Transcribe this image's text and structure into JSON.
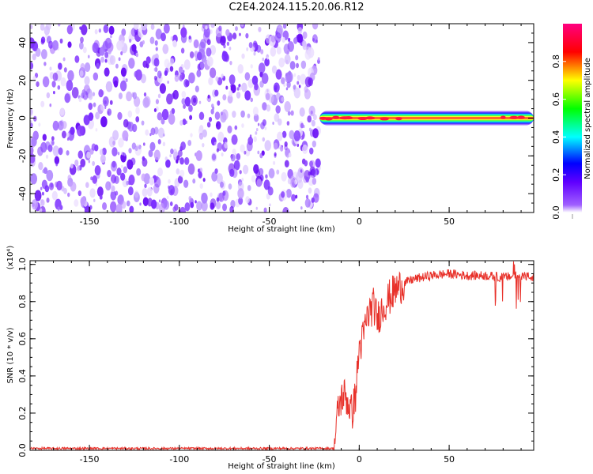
{
  "title": "C2E4.2024.115.20.06.R12",
  "chart_data": [
    {
      "type": "heatmap",
      "xlabel": "Height of straight line (km)",
      "ylabel": "Frequency (Hz)",
      "xlim": [
        -183,
        97
      ],
      "ylim": [
        -50,
        50
      ],
      "xticks": [
        -150,
        -100,
        -50,
        0,
        50
      ],
      "yticks": [
        -40,
        -20,
        0,
        20,
        40
      ],
      "noise_region": {
        "x": [
          -183,
          -22
        ],
        "y": [
          -50,
          50
        ]
      },
      "signal_band": {
        "x": [
          -22,
          97
        ],
        "frequency": 0,
        "halfwidth": 2.5
      },
      "colorbar": {
        "label": "Normalized spectral amplitude",
        "range": [
          0.0,
          1.0
        ],
        "ticks": [
          "0.0",
          "0.2",
          "0.4",
          "0.6",
          "0.8"
        ],
        "colors": [
          "#ffffff",
          "#8000ff",
          "#0000ff",
          "#00ffff",
          "#00ff00",
          "#ffff00",
          "#ff0000",
          "#ff0080"
        ]
      }
    },
    {
      "type": "line",
      "xlabel": "Height of straight line (km)",
      "ylabel": "SNR (10 * v/v)",
      "yscale_label": "(x10⁴)",
      "xlim": [
        -183,
        97
      ],
      "ylim": [
        0,
        1.02
      ],
      "xticks": [
        -150,
        -100,
        -50,
        0,
        50
      ],
      "yticks": [
        "0.0",
        "0.2",
        "0.4",
        "0.6",
        "0.8",
        "1.0"
      ],
      "color": "#e8312a",
      "series": [
        {
          "x": [
            -183,
            -160,
            -140,
            -120,
            -100,
            -80,
            -60,
            -40,
            -20,
            -14,
            -12,
            -10,
            -8,
            -6,
            -4,
            -2,
            0,
            2,
            4,
            6,
            8,
            10,
            12,
            15,
            20,
            25,
            30,
            35,
            40,
            50,
            60,
            70,
            80,
            90,
            97
          ],
          "values": [
            0.01,
            0.01,
            0.01,
            0.01,
            0.01,
            0.01,
            0.01,
            0.01,
            0.01,
            0.01,
            0.2,
            0.28,
            0.3,
            0.25,
            0.2,
            0.3,
            0.55,
            0.6,
            0.7,
            0.75,
            0.78,
            0.7,
            0.75,
            0.8,
            0.86,
            0.9,
            0.92,
            0.93,
            0.94,
            0.95,
            0.94,
            0.94,
            0.93,
            0.94,
            0.93
          ]
        }
      ]
    }
  ]
}
